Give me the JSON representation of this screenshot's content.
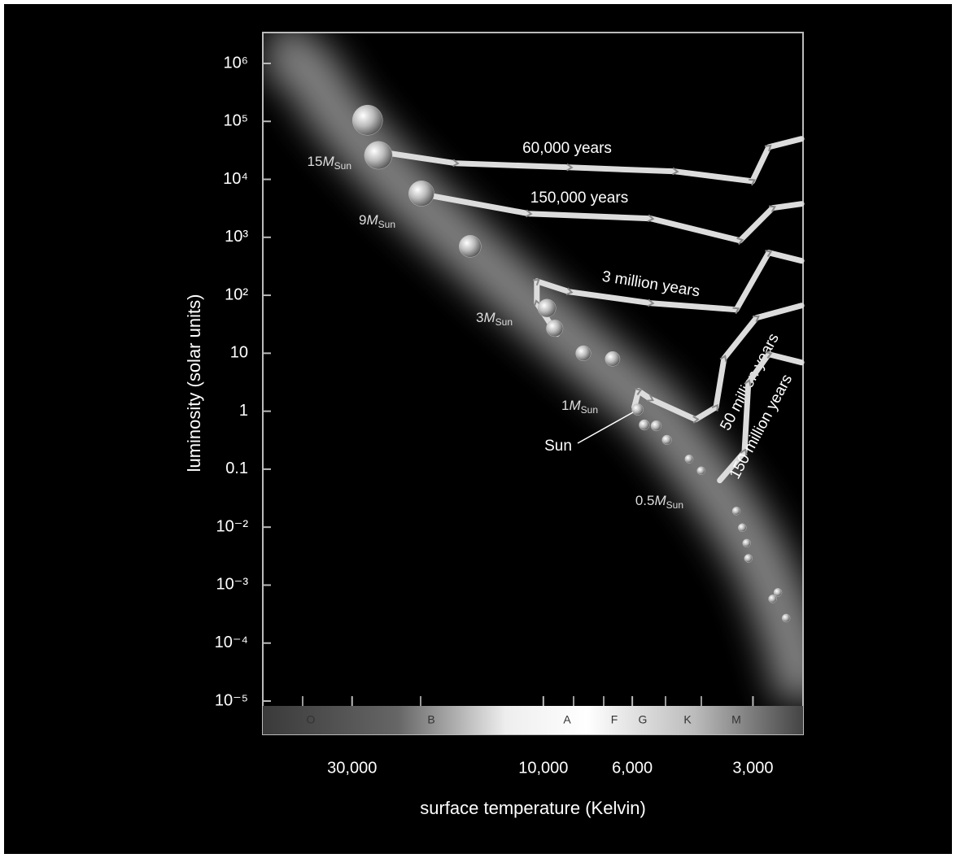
{
  "chart_data": {
    "type": "scatter",
    "x_label": "surface temperature (Kelvin)",
    "y_label": "luminosity (solar units)",
    "log_x": true,
    "log_y": true,
    "xlim": [
      50100,
      2250
    ],
    "ylim": [
      2.66e-06,
      3410000
    ],
    "xticks": [
      {
        "value": 30000,
        "label": "30,000"
      },
      {
        "value": 10000,
        "label": "10,000"
      },
      {
        "value": 6000,
        "label": "6,000"
      },
      {
        "value": 3000,
        "label": "3,000"
      }
    ],
    "yticks": [
      {
        "value": 1000000,
        "label": "10⁶"
      },
      {
        "value": 100000,
        "label": "10⁵"
      },
      {
        "value": 10000,
        "label": "10⁴"
      },
      {
        "value": 1000,
        "label": "10³"
      },
      {
        "value": 100,
        "label": "10²"
      },
      10,
      1,
      0.1,
      {
        "value": 0.01,
        "label": "10⁻²"
      },
      {
        "value": 0.001,
        "label": "10⁻³"
      },
      {
        "value": 0.0001,
        "label": "10⁻⁴"
      },
      {
        "value": 1e-05,
        "label": "10⁻⁵"
      }
    ],
    "spectral_classes": [
      "O",
      "B",
      "A",
      "F",
      "G",
      "K",
      "M"
    ],
    "series": [
      {
        "name": "60,000 years",
        "color": "#dcdcdc",
        "x": [
          2270,
          2740,
          3010,
          4690,
          8610,
          16560,
          24080
        ],
        "values": [
          50000,
          36000,
          9300,
          13700,
          16100,
          19000,
          28000
        ]
      },
      {
        "name": "150,000 years",
        "color": "#dcdcdc",
        "x": [
          2270,
          2680,
          3230,
          5400,
          10880,
          19060
        ],
        "values": [
          3770,
          3210,
          880,
          2110,
          2560,
          5210
        ]
      },
      {
        "name": "3 million years",
        "color": "#dcdcdc",
        "x": [
          2270,
          2740,
          3300,
          5400,
          8610,
          10380,
          10380,
          9240
        ],
        "values": [
          393,
          543,
          56.6,
          73.3,
          115,
          175,
          73,
          21.5
        ]
      },
      {
        "name": "50 million years",
        "color": "#dcdcdc",
        "x": [
          2270,
          2940,
          3540,
          3710,
          4170,
          5400,
          5790,
          5930
        ],
        "values": [
          66.5,
          41,
          8.2,
          1.17,
          0.72,
          1.62,
          2.24,
          1.17
        ]
      },
      {
        "name": "150 million years",
        "color": "#dcdcdc",
        "x": [
          2270,
          2740,
          3080,
          3150,
          3630
        ],
        "values": [
          6.94,
          9.6,
          3.1,
          0.199,
          0.064
        ]
      }
    ],
    "main_sequence": {
      "color": "#bbbbbb",
      "x": [
        27450,
        25800,
        20150,
        15230,
        9800,
        9370,
        7950,
        6720,
        5820,
        5600,
        5230,
        4920,
        4330,
        4040,
        3300,
        3190,
        3110,
        3080,
        2600,
        2680,
        2480
      ],
      "values": [
        105000,
        26000,
        5700,
        700,
        60,
        27,
        10,
        8,
        1.07,
        0.58,
        0.56,
        0.32,
        0.15,
        0.094,
        0.019,
        0.0098,
        0.0053,
        0.0029,
        0.00075,
        0.00058,
        0.00027
      ]
    },
    "masses": [
      "15",
      "9",
      "3",
      "1",
      "0.5"
    ],
    "mass_symbol": "M",
    "mass_subscript": "Sun",
    "sun_label": "Sun"
  }
}
